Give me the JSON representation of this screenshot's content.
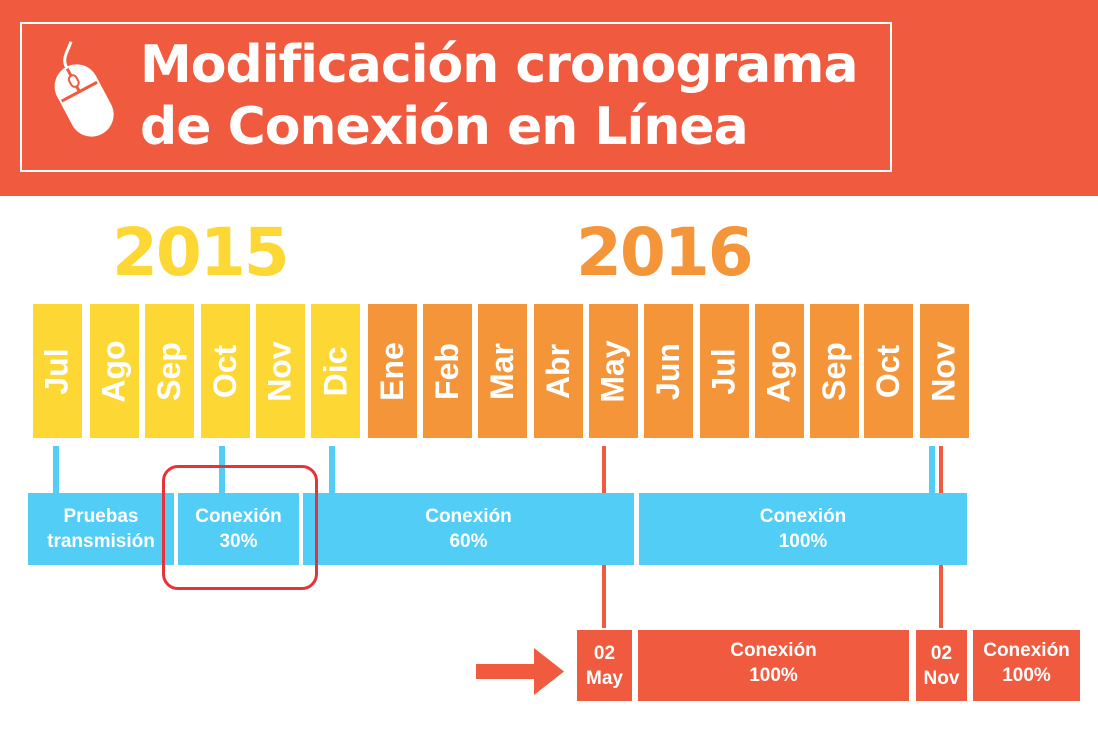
{
  "header": {
    "title_line1": "Modificación cronograma",
    "title_line2": "de Conexión en Línea",
    "icon": "mouse-icon",
    "background_color": "#f05a3f"
  },
  "years": [
    {
      "label": "2015",
      "color": "#fdd835"
    },
    {
      "label": "2016",
      "color": "#f4953a"
    }
  ],
  "months": [
    {
      "label": "Jul",
      "year": "2015"
    },
    {
      "label": "Ago",
      "year": "2015"
    },
    {
      "label": "Sep",
      "year": "2015"
    },
    {
      "label": "Oct",
      "year": "2015"
    },
    {
      "label": "Nov",
      "year": "2015"
    },
    {
      "label": "Dic",
      "year": "2015"
    },
    {
      "label": "Ene",
      "year": "2016"
    },
    {
      "label": "Feb",
      "year": "2016"
    },
    {
      "label": "Mar",
      "year": "2016"
    },
    {
      "label": "Abr",
      "year": "2016"
    },
    {
      "label": "May",
      "year": "2016"
    },
    {
      "label": "Jun",
      "year": "2016"
    },
    {
      "label": "Jul",
      "year": "2016"
    },
    {
      "label": "Ago",
      "year": "2016"
    },
    {
      "label": "Sep",
      "year": "2016"
    },
    {
      "label": "Oct",
      "year": "2016"
    },
    {
      "label": "Nov",
      "year": "2016"
    }
  ],
  "original_schedule": {
    "color": "#52cdf5",
    "phases": [
      {
        "line1": "Pruebas",
        "line2": "transmisión"
      },
      {
        "line1": "Conexión",
        "line2": "30%"
      },
      {
        "line1": "Conexión",
        "line2": "60%"
      },
      {
        "line1": "Conexión",
        "line2": "100%"
      }
    ]
  },
  "modified_schedule": {
    "color": "#f05a3f",
    "items": [
      {
        "line1": "02",
        "line2": "May"
      },
      {
        "line1": "Conexión",
        "line2": "100%"
      },
      {
        "line1": "02",
        "line2": "Nov"
      },
      {
        "line1": "Conexión",
        "line2": "100%"
      }
    ]
  },
  "highlight_color": "#e8323a"
}
